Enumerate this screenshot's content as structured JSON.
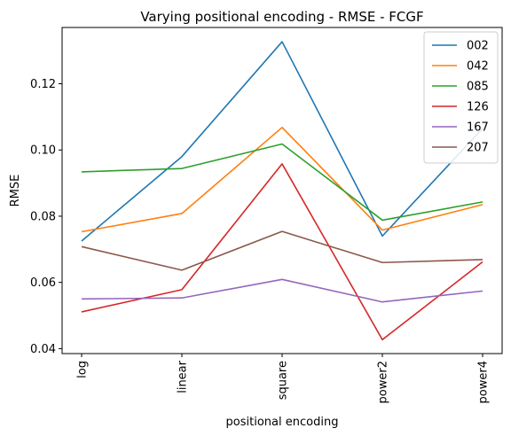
{
  "chart_data": {
    "type": "line",
    "title": "Varying positional encoding - RMSE - FCGF",
    "xlabel": "positional encoding",
    "ylabel": "RMSE",
    "categories": [
      "log",
      "linear",
      "square",
      "power2",
      "power4"
    ],
    "ylim": [
      0.0385,
      0.137
    ],
    "yticks": [
      0.04,
      0.06,
      0.08,
      0.1,
      0.12
    ],
    "ytick_labels": [
      "0.04",
      "0.06",
      "0.08",
      "0.10",
      "0.12"
    ],
    "grid": false,
    "legend_position": "top-right",
    "series": [
      {
        "name": "002",
        "color": "#1f77b4",
        "values": [
          0.0725,
          0.098,
          0.1327,
          0.074,
          0.1065
        ]
      },
      {
        "name": "042",
        "color": "#ff7f0e",
        "values": [
          0.0753,
          0.0808,
          0.1068,
          0.0758,
          0.0835
        ]
      },
      {
        "name": "085",
        "color": "#2ca02c",
        "values": [
          0.0934,
          0.0944,
          0.1018,
          0.0788,
          0.0843
        ]
      },
      {
        "name": "126",
        "color": "#d62728",
        "values": [
          0.0511,
          0.0578,
          0.0958,
          0.0427,
          0.0662
        ]
      },
      {
        "name": "167",
        "color": "#9467bd",
        "values": [
          0.055,
          0.0553,
          0.0609,
          0.0541,
          0.0574
        ]
      },
      {
        "name": "207",
        "color": "#8c564b",
        "values": [
          0.0708,
          0.0637,
          0.0754,
          0.066,
          0.0669
        ]
      }
    ]
  }
}
